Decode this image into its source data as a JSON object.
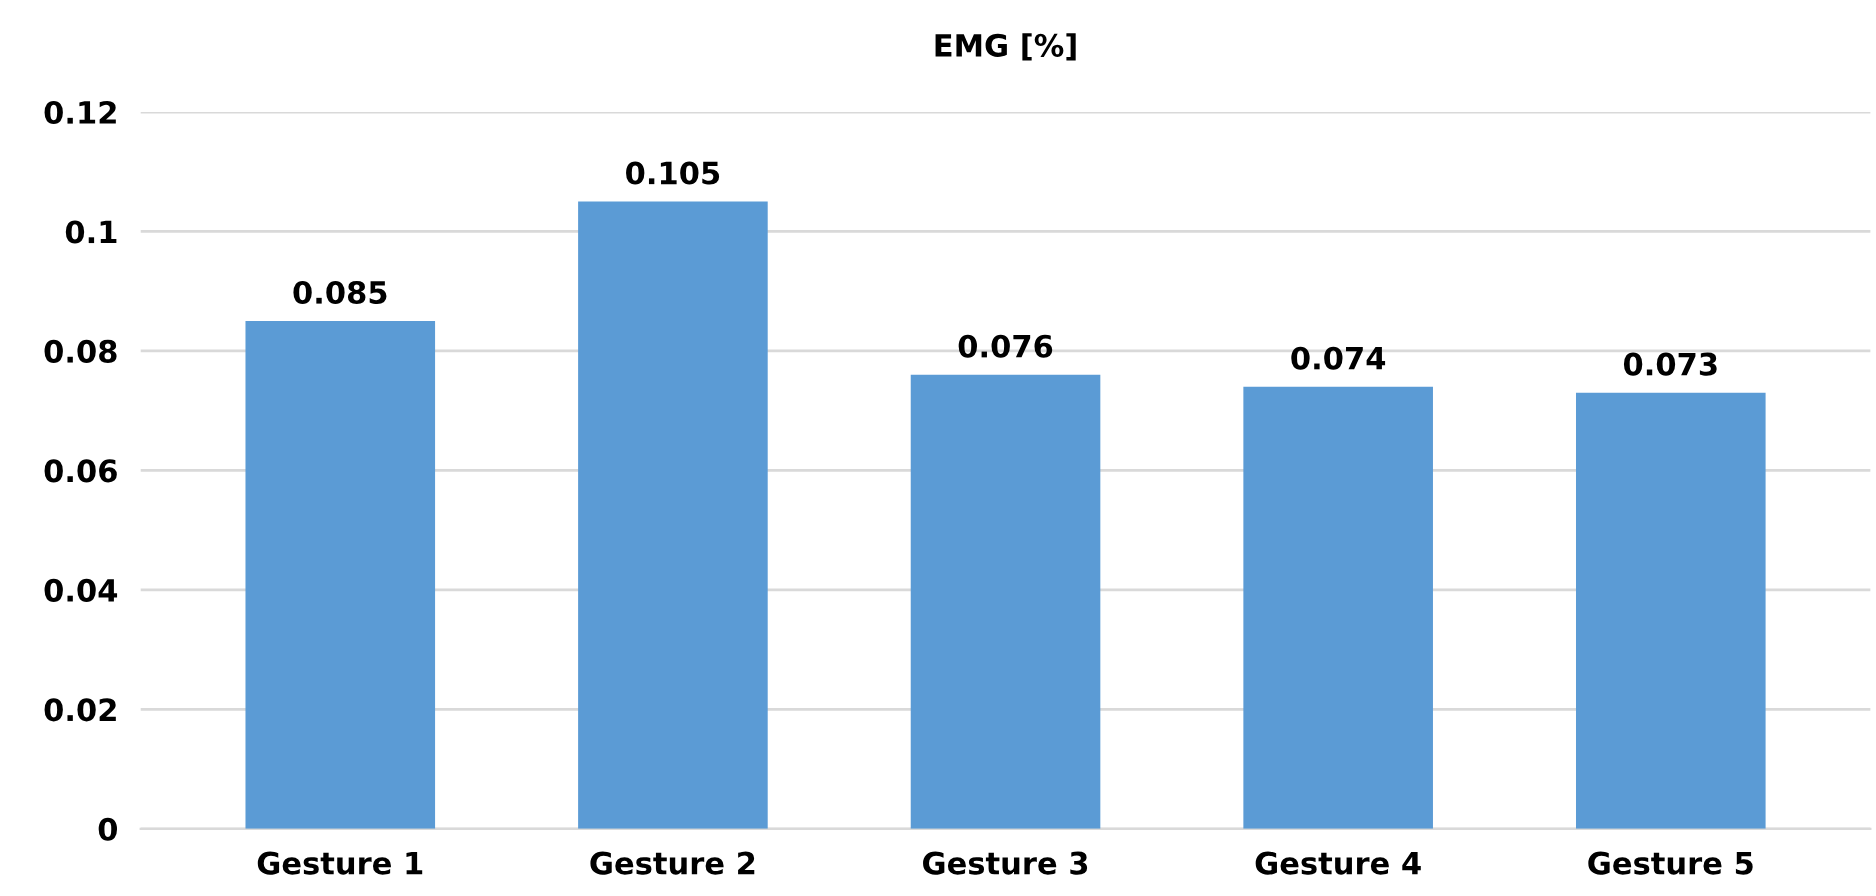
{
  "chart_data": {
    "type": "bar",
    "title": "EMG [%]",
    "categories": [
      "Gesture 1",
      "Gesture 2",
      "Gesture 3",
      "Gesture 4",
      "Gesture 5"
    ],
    "values": [
      0.085,
      0.105,
      0.076,
      0.074,
      0.073
    ],
    "color": "#5b9bd5",
    "ylim": [
      0,
      0.12
    ],
    "yticks": [
      {
        "value": 0,
        "label": "0"
      },
      0.02,
      0.04,
      0.06,
      0.08,
      {
        "value": 0.1,
        "label": "0.1"
      },
      0.12
    ],
    "grid": "y",
    "data_labels": true
  }
}
